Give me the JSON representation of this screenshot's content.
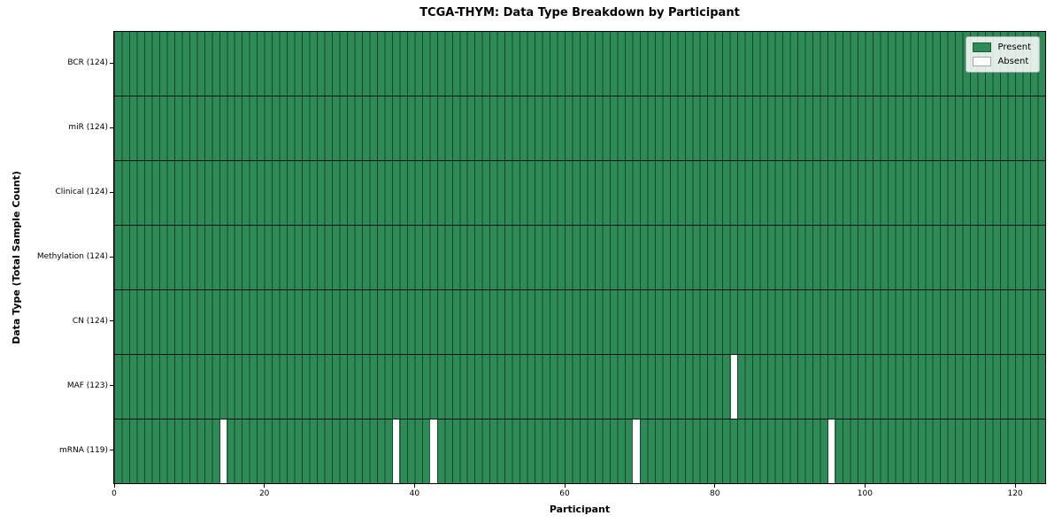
{
  "figure": {
    "title": "TCGA-THYM: Data Type Breakdown by Participant",
    "xlabel": "Participant",
    "ylabel": "Data Type (Total Sample Count)"
  },
  "chart_data": {
    "type": "heatmap",
    "title": "TCGA-THYM: Data Type Breakdown by Participant",
    "xlabel": "Participant",
    "ylabel": "Data Type (Total Sample Count)",
    "n_participants": 124,
    "xlim": [
      0,
      124
    ],
    "x_ticks": [
      0,
      20,
      40,
      60,
      80,
      100,
      120
    ],
    "rows": [
      {
        "label": "BCR (124)",
        "total": 124,
        "absent_participants": []
      },
      {
        "label": "miR (124)",
        "total": 124,
        "absent_participants": []
      },
      {
        "label": "Clinical (124)",
        "total": 124,
        "absent_participants": []
      },
      {
        "label": "Methylation (124)",
        "total": 124,
        "absent_participants": []
      },
      {
        "label": "CN (124)",
        "total": 124,
        "absent_participants": []
      },
      {
        "label": "MAF (123)",
        "total": 123,
        "absent_participants": [
          82
        ]
      },
      {
        "label": "mRNA (119)",
        "total": 119,
        "absent_participants": [
          14,
          37,
          42,
          69,
          95
        ]
      }
    ],
    "colors": {
      "present": "#2e8b57",
      "absent": "#ffffff",
      "cell_edge": "rgba(0,0,0,0.5)",
      "row_separator": "#141414",
      "spine": "#000000"
    },
    "legend": {
      "position": "upper right",
      "entries": [
        {
          "label": "Present",
          "color": "#2e8b57"
        },
        {
          "label": "Absent",
          "color": "#ffffff"
        }
      ]
    },
    "grid": "cell-edges"
  }
}
